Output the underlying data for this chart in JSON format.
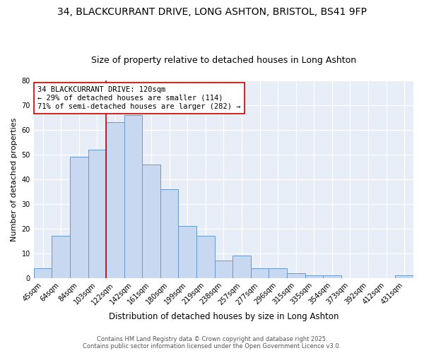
{
  "title_line1": "34, BLACKCURRANT DRIVE, LONG ASHTON, BRISTOL, BS41 9FP",
  "title_line2": "Size of property relative to detached houses in Long Ashton",
  "xlabel": "Distribution of detached houses by size in Long Ashton",
  "ylabel": "Number of detached properties",
  "bar_labels": [
    "45sqm",
    "64sqm",
    "84sqm",
    "103sqm",
    "122sqm",
    "142sqm",
    "161sqm",
    "180sqm",
    "199sqm",
    "219sqm",
    "238sqm",
    "257sqm",
    "277sqm",
    "296sqm",
    "315sqm",
    "335sqm",
    "354sqm",
    "373sqm",
    "392sqm",
    "412sqm",
    "431sqm"
  ],
  "bar_values": [
    4,
    17,
    49,
    52,
    63,
    66,
    46,
    36,
    21,
    17,
    7,
    9,
    4,
    4,
    2,
    1,
    1,
    0,
    0,
    0,
    1
  ],
  "bar_color": "#c8d8f0",
  "bar_edge_color": "#6699cc",
  "vline_color": "#cc0000",
  "vline_x_index": 3.5,
  "ylim": [
    0,
    80
  ],
  "yticks": [
    0,
    10,
    20,
    30,
    40,
    50,
    60,
    70,
    80
  ],
  "annotation_text": "34 BLACKCURRANT DRIVE: 120sqm\n← 29% of detached houses are smaller (114)\n71% of semi-detached houses are larger (282) →",
  "annotation_box_facecolor": "#ffffff",
  "annotation_box_edgecolor": "#cc0000",
  "plot_bg_color": "#e8eef8",
  "fig_bg_color": "#ffffff",
  "title_fontsize": 10,
  "subtitle_fontsize": 9,
  "xlabel_fontsize": 8.5,
  "ylabel_fontsize": 8,
  "tick_fontsize": 7,
  "annotation_fontsize": 7.5,
  "footer_fontsize": 6
}
